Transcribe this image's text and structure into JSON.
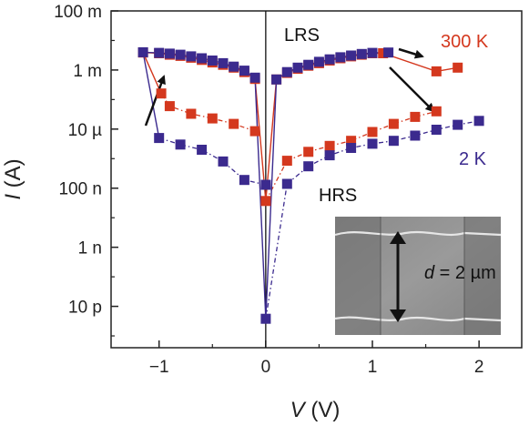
{
  "chart_data": {
    "type": "scatter",
    "title": "",
    "xlabel_var": "V",
    "xlabel_unit": "(V)",
    "ylabel_var": "I",
    "ylabel_unit": "(A)",
    "xlim": [
      -1.45,
      2.4
    ],
    "ylim_log10": [
      -12.4,
      -1
    ],
    "y_scale": "log",
    "grid": false,
    "xticks": [
      {
        "value": -1,
        "label": "−1"
      },
      {
        "value": 0,
        "label": "0"
      },
      {
        "value": 1,
        "label": "1"
      },
      {
        "value": 2,
        "label": "2"
      }
    ],
    "yticks": [
      {
        "log10": -1,
        "label": "100 m"
      },
      {
        "log10": -3,
        "label": "1 m"
      },
      {
        "log10": -5,
        "label": "10 µ"
      },
      {
        "log10": -7,
        "label": "100 n"
      },
      {
        "log10": -9,
        "label": "1 n"
      },
      {
        "log10": -11,
        "label": "10 p"
      }
    ],
    "colors": {
      "red": "#d4381e",
      "blue": "#3b2a8e",
      "black": "#111111"
    },
    "series": [
      {
        "name": "300 K",
        "color": "#d4381e",
        "hrs": [
          [
            0,
            3.7e-08
          ],
          [
            0.2,
            8.5e-07
          ],
          [
            0.4,
            1.7e-06
          ],
          [
            0.6,
            2.7e-06
          ],
          [
            0.8,
            4e-06
          ],
          [
            1.0,
            8e-06
          ],
          [
            1.2,
            1.5e-05
          ],
          [
            1.4,
            2.6e-05
          ],
          [
            1.6,
            4e-05
          ]
        ],
        "lrs_pos": [
          [
            0.1,
            0.00048
          ],
          [
            0.2,
            0.0008
          ],
          [
            0.3,
            0.0011
          ],
          [
            0.4,
            0.0014
          ],
          [
            0.5,
            0.0017
          ],
          [
            0.6,
            0.0021
          ],
          [
            0.7,
            0.0025
          ],
          [
            0.8,
            0.0029
          ],
          [
            0.9,
            0.0033
          ],
          [
            1.0,
            0.0037
          ],
          [
            1.1,
            0.0037
          ],
          [
            1.6,
            0.0009
          ],
          [
            1.8,
            0.0012
          ]
        ],
        "lrs_neg": [
          [
            -0.1,
            0.0005
          ],
          [
            -0.2,
            0.00085
          ],
          [
            -0.3,
            0.0012
          ],
          [
            -0.4,
            0.0015
          ],
          [
            -0.5,
            0.0018
          ],
          [
            -0.6,
            0.0022
          ],
          [
            -0.7,
            0.0026
          ],
          [
            -0.8,
            0.003
          ],
          [
            -0.9,
            0.0033
          ],
          [
            -1.0,
            0.0037
          ],
          [
            -1.15,
            0.0039
          ]
        ],
        "hrs_neg": [
          [
            -0.1,
            8.5e-06
          ],
          [
            -0.3,
            1.5e-05
          ],
          [
            -0.5,
            2.3e-05
          ],
          [
            -0.7,
            3.3e-05
          ],
          [
            -0.9,
            6e-05
          ],
          [
            -0.98,
            0.00016
          ]
        ]
      },
      {
        "name": "2 K",
        "color": "#3b2a8e",
        "hrs": [
          [
            0,
            3.8e-12
          ],
          [
            0.2,
            1.4e-07
          ],
          [
            0.4,
            5.5e-07
          ],
          [
            0.6,
            1.3e-06
          ],
          [
            0.8,
            2.3e-06
          ],
          [
            1.0,
            3.2e-06
          ],
          [
            1.2,
            4e-06
          ],
          [
            1.4,
            6e-06
          ],
          [
            1.6,
            9.5e-06
          ],
          [
            1.8,
            1.4e-05
          ],
          [
            2.0,
            1.9e-05
          ]
        ],
        "lrs_pos": [
          [
            0.1,
            0.00048
          ],
          [
            0.2,
            0.00085
          ],
          [
            0.3,
            0.0012
          ],
          [
            0.4,
            0.0015
          ],
          [
            0.5,
            0.0019
          ],
          [
            0.6,
            0.0023
          ],
          [
            0.7,
            0.0027
          ],
          [
            0.8,
            0.0031
          ],
          [
            0.9,
            0.0035
          ],
          [
            1.0,
            0.0038
          ],
          [
            1.15,
            0.0039
          ]
        ],
        "lrs_neg": [
          [
            -0.1,
            0.00055
          ],
          [
            -0.2,
            0.00095
          ],
          [
            -0.3,
            0.0013
          ],
          [
            -0.4,
            0.0017
          ],
          [
            -0.5,
            0.0021
          ],
          [
            -0.6,
            0.0025
          ],
          [
            -0.7,
            0.0029
          ],
          [
            -0.8,
            0.0033
          ],
          [
            -0.9,
            0.0036
          ],
          [
            -1.0,
            0.0038
          ],
          [
            -1.15,
            0.004
          ]
        ],
        "hrs_neg": [
          [
            0,
            1.3e-07
          ],
          [
            -0.2,
            1.9e-07
          ],
          [
            -0.4,
            8e-07
          ],
          [
            -0.6,
            2e-06
          ],
          [
            -0.8,
            3e-06
          ],
          [
            -1.0,
            5e-06
          ]
        ]
      }
    ],
    "annotations": {
      "lrs": "LRS",
      "hrs": "HRS",
      "t300": "300 K",
      "t2": "2 K",
      "inset_var": "d",
      "inset_eq": " = 2 µm"
    }
  }
}
